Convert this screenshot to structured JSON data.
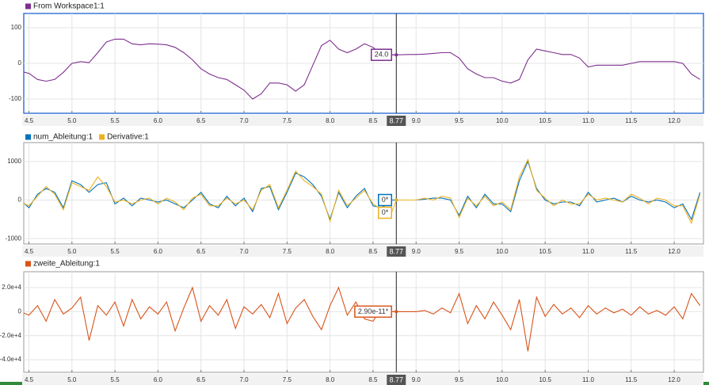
{
  "chart_data": [
    {
      "type": "line",
      "cursor": 8.77,
      "x": [
        4.4,
        4.5,
        4.6,
        4.7,
        4.8,
        4.9,
        5.0,
        5.1,
        5.2,
        5.3,
        5.4,
        5.5,
        5.6,
        5.7,
        5.8,
        5.9,
        6.0,
        6.1,
        6.2,
        6.3,
        6.4,
        6.5,
        6.6,
        6.7,
        6.8,
        6.9,
        7.0,
        7.1,
        7.2,
        7.3,
        7.4,
        7.5,
        7.6,
        7.7,
        7.8,
        7.9,
        8.0,
        8.1,
        8.2,
        8.3,
        8.4,
        8.5,
        8.6,
        8.7,
        8.8,
        8.9,
        9.0,
        9.1,
        9.2,
        9.3,
        9.4,
        9.5,
        9.6,
        9.7,
        9.8,
        9.9,
        10.0,
        10.1,
        10.2,
        10.3,
        10.4,
        10.5,
        10.6,
        10.7,
        10.8,
        10.9,
        11.0,
        11.1,
        11.2,
        11.3,
        11.4,
        11.5,
        11.6,
        11.7,
        11.8,
        11.9,
        12.0,
        12.1,
        12.2,
        12.3
      ],
      "series": [
        {
          "name": "From Workspace1:1",
          "color": "#7e2f8e",
          "cursor_value": 24,
          "cursor_label": "24.0",
          "values": [
            -22,
            -28,
            -45,
            -50,
            -45,
            -25,
            0,
            5,
            2,
            30,
            60,
            68,
            68,
            55,
            52,
            55,
            54,
            52,
            45,
            30,
            10,
            -15,
            -30,
            -40,
            -45,
            -60,
            -75,
            -100,
            -85,
            -55,
            -55,
            -60,
            -78,
            -60,
            -5,
            50,
            65,
            40,
            30,
            40,
            55,
            45,
            24,
            24,
            24,
            25,
            25,
            26,
            28,
            30,
            30,
            15,
            -15,
            -30,
            -40,
            -40,
            -50,
            -55,
            -45,
            10,
            40,
            35,
            30,
            25,
            25,
            15,
            -10,
            -5,
            -5,
            -5,
            -5,
            0,
            5,
            5,
            5,
            5,
            5,
            0,
            -30,
            -45
          ]
        }
      ],
      "xlim": [
        4.44,
        12.34
      ],
      "ylim": [
        -140,
        140
      ],
      "xticks": [
        4.5,
        {
          "value": 5,
          "label": "5.0"
        },
        5.5,
        {
          "value": 6,
          "label": "6.0"
        },
        6.5,
        {
          "value": 7,
          "label": "7.0"
        },
        7.5,
        {
          "value": 8,
          "label": "8.0"
        },
        8.5,
        {
          "value": 9,
          "label": "9.0"
        },
        9.5,
        {
          "value": 10,
          "label": "10.0"
        },
        10.5,
        {
          "value": 11,
          "label": "11.0"
        },
        11.5,
        {
          "value": 12,
          "label": "12.0"
        }
      ],
      "yticks": [
        -100,
        0,
        100
      ],
      "grid": true,
      "selected": true
    },
    {
      "type": "line",
      "cursor": 8.77,
      "x": [
        4.4,
        4.5,
        4.6,
        4.7,
        4.8,
        4.9,
        5.0,
        5.1,
        5.2,
        5.3,
        5.4,
        5.5,
        5.6,
        5.7,
        5.8,
        5.9,
        6.0,
        6.1,
        6.2,
        6.3,
        6.4,
        6.5,
        6.6,
        6.7,
        6.8,
        6.9,
        7.0,
        7.1,
        7.2,
        7.3,
        7.4,
        7.5,
        7.6,
        7.7,
        7.8,
        7.9,
        8.0,
        8.1,
        8.2,
        8.3,
        8.4,
        8.5,
        8.6,
        8.7,
        8.8,
        8.9,
        9.0,
        9.1,
        9.2,
        9.3,
        9.4,
        9.5,
        9.6,
        9.7,
        9.8,
        9.9,
        10.0,
        10.1,
        10.2,
        10.3,
        10.4,
        10.5,
        10.6,
        10.7,
        10.8,
        10.9,
        11.0,
        11.1,
        11.2,
        11.3,
        11.4,
        11.5,
        11.6,
        11.7,
        11.8,
        11.9,
        12.0,
        12.1,
        12.2,
        12.3
      ],
      "series": [
        {
          "name": "num_Ableitung:1",
          "color": "#0072bd",
          "cursor_value": 0,
          "cursor_label": "0*",
          "values": [
            0,
            -200,
            150,
            300,
            200,
            -200,
            500,
            400,
            200,
            400,
            450,
            -100,
            50,
            -150,
            50,
            0,
            -50,
            0,
            -100,
            -200,
            0,
            200,
            -100,
            -200,
            100,
            -150,
            50,
            -300,
            300,
            350,
            -250,
            200,
            700,
            600,
            400,
            100,
            -500,
            200,
            -200,
            100,
            300,
            -150,
            -200,
            0,
            0,
            0,
            0,
            20,
            50,
            50,
            0,
            -400,
            100,
            -200,
            150,
            -100,
            -100,
            -300,
            500,
            1000,
            300,
            0,
            -100,
            -50,
            -50,
            -150,
            200,
            -50,
            0,
            50,
            -50,
            100,
            0,
            -50,
            0,
            -50,
            -200,
            -100,
            -500,
            200
          ]
        },
        {
          "name": "Derivative:1",
          "color": "#edb120",
          "cursor_value": 0,
          "cursor_label": "0*",
          "values": [
            -50,
            -150,
            100,
            350,
            150,
            -250,
            450,
            350,
            250,
            600,
            350,
            -50,
            0,
            -100,
            0,
            50,
            -100,
            50,
            -50,
            -250,
            50,
            150,
            -150,
            -150,
            50,
            -100,
            0,
            -250,
            250,
            400,
            -200,
            250,
            750,
            500,
            350,
            150,
            -550,
            250,
            -150,
            50,
            250,
            -100,
            -250,
            0,
            0,
            0,
            0,
            50,
            0,
            100,
            50,
            -450,
            50,
            -150,
            100,
            -150,
            -50,
            -250,
            600,
            1050,
            250,
            50,
            -150,
            0,
            -100,
            -100,
            150,
            0,
            50,
            0,
            -50,
            150,
            50,
            -100,
            50,
            0,
            -150,
            -150,
            -600,
            150
          ]
        }
      ],
      "xlim": [
        4.44,
        12.34
      ],
      "ylim": [
        -1140,
        1490
      ],
      "xticks": [
        4.5,
        {
          "value": 5,
          "label": "5.0"
        },
        5.5,
        {
          "value": 6,
          "label": "6.0"
        },
        6.5,
        {
          "value": 7,
          "label": "7.0"
        },
        7.5,
        {
          "value": 8,
          "label": "8.0"
        },
        8.5,
        {
          "value": 9,
          "label": "9.0"
        },
        9.5,
        {
          "value": 10,
          "label": "10.0"
        },
        10.5,
        {
          "value": 11,
          "label": "11.0"
        },
        11.5,
        {
          "value": 12,
          "label": "12.0"
        }
      ],
      "yticks": [
        -1000,
        0,
        1000
      ],
      "grid": true,
      "selected": false
    },
    {
      "type": "line",
      "cursor": 8.77,
      "x": [
        4.4,
        4.5,
        4.6,
        4.7,
        4.8,
        4.9,
        5.0,
        5.1,
        5.2,
        5.3,
        5.4,
        5.5,
        5.6,
        5.7,
        5.8,
        5.9,
        6.0,
        6.1,
        6.2,
        6.3,
        6.4,
        6.5,
        6.6,
        6.7,
        6.8,
        6.9,
        7.0,
        7.1,
        7.2,
        7.3,
        7.4,
        7.5,
        7.6,
        7.7,
        7.8,
        7.9,
        8.0,
        8.1,
        8.2,
        8.3,
        8.4,
        8.5,
        8.6,
        8.7,
        8.8,
        8.9,
        9.0,
        9.1,
        9.2,
        9.3,
        9.4,
        9.5,
        9.6,
        9.7,
        9.8,
        9.9,
        10.0,
        10.1,
        10.2,
        10.3,
        10.4,
        10.5,
        10.6,
        10.7,
        10.8,
        10.9,
        11.0,
        11.1,
        11.2,
        11.3,
        11.4,
        11.5,
        11.6,
        11.7,
        11.8,
        11.9,
        12.0,
        12.1,
        12.2,
        12.3
      ],
      "series": [
        {
          "name": "zweite_Ableitung:1",
          "color": "#d95319",
          "cursor_value": 2.9e-11,
          "cursor_label": "2.90e-11*",
          "values": [
            0,
            -3000,
            5000,
            -8000,
            10000,
            -2000,
            3000,
            12000,
            -24000,
            5000,
            -3000,
            8000,
            -12000,
            10000,
            -6000,
            4000,
            -2000,
            8000,
            -16000,
            3000,
            20000,
            -8000,
            5000,
            -3000,
            10000,
            -14000,
            4000,
            -2000,
            6000,
            -5000,
            15000,
            -10000,
            3000,
            10000,
            -4000,
            -15000,
            5000,
            20000,
            -3000,
            8000,
            -6000,
            -8000,
            3000,
            0,
            0,
            0,
            0,
            1000,
            -2000,
            3000,
            -1000,
            15000,
            -10000,
            5000,
            -6000,
            8000,
            -3000,
            -15000,
            10000,
            -33000,
            12000,
            -4000,
            6000,
            -2000,
            3000,
            -5000,
            5000,
            -2000,
            3000,
            -1000,
            2000,
            -3000,
            4000,
            -2000,
            1000,
            -3000,
            4000,
            -6000,
            15000,
            5000
          ]
        }
      ],
      "xlim": [
        4.44,
        12.34
      ],
      "ylim": [
        -50500,
        33200
      ],
      "xticks": [
        4.5,
        {
          "value": 5,
          "label": "5.0"
        },
        5.5,
        {
          "value": 6,
          "label": "6.0"
        },
        6.5,
        {
          "value": 7,
          "label": "7.0"
        },
        7.5,
        {
          "value": 8,
          "label": "8.0"
        },
        8.5,
        {
          "value": 9,
          "label": "9.0"
        },
        9.5,
        {
          "value": 10,
          "label": "10.0"
        },
        10.5,
        {
          "value": 11,
          "label": "11.0"
        },
        11.5,
        {
          "value": 12,
          "label": "12.0"
        }
      ],
      "yticks": [
        {
          "value": -40000,
          "label": "-4.0e+4"
        },
        {
          "value": -20000,
          "label": "-2.0e+4"
        },
        0,
        {
          "value": 20000,
          "label": "2.0e+4"
        }
      ],
      "grid": true,
      "selected": false
    }
  ]
}
